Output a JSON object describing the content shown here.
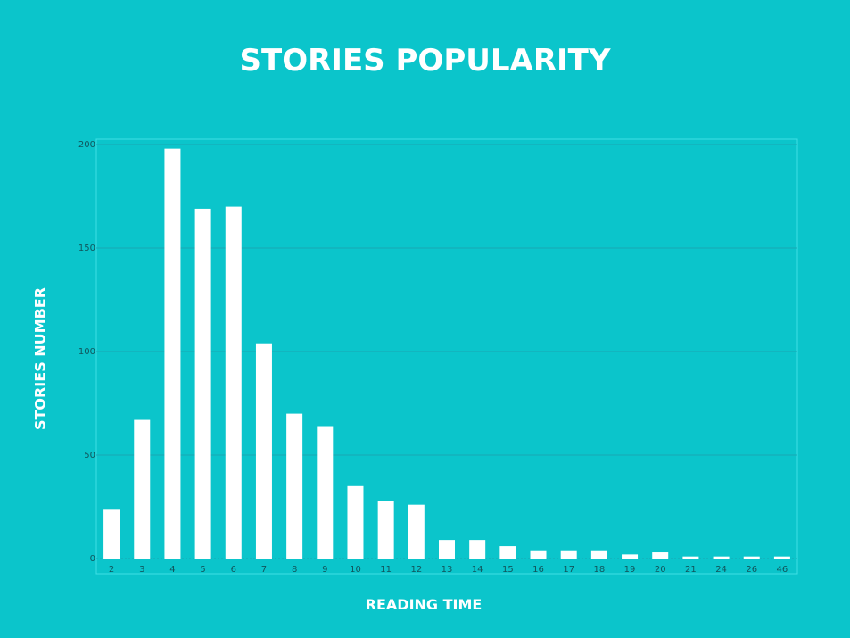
{
  "chart_data": {
    "type": "bar",
    "title": "STORIES POPULARITY",
    "xlabel": "READING TIME",
    "ylabel": "STORIES NUMBER",
    "categories": [
      "2",
      "3",
      "4",
      "5",
      "6",
      "7",
      "8",
      "9",
      "10",
      "11",
      "12",
      "13",
      "14",
      "15",
      "16",
      "17",
      "18",
      "19",
      "20",
      "21",
      "24",
      "26",
      "46"
    ],
    "values": [
      24,
      67,
      198,
      169,
      170,
      104,
      70,
      64,
      35,
      28,
      26,
      9,
      9,
      6,
      4,
      4,
      4,
      2,
      3,
      1,
      1,
      1,
      1
    ],
    "ylim": [
      0,
      200
    ],
    "yticks": [
      0,
      50,
      100,
      150,
      200
    ],
    "grid": true,
    "legend": "none",
    "colors": {
      "background": "#0bc5cb",
      "bar": "#ffffff",
      "grid": "#19a8b3",
      "frame": "#3fe0e6",
      "tick_text": "#11555c"
    }
  }
}
